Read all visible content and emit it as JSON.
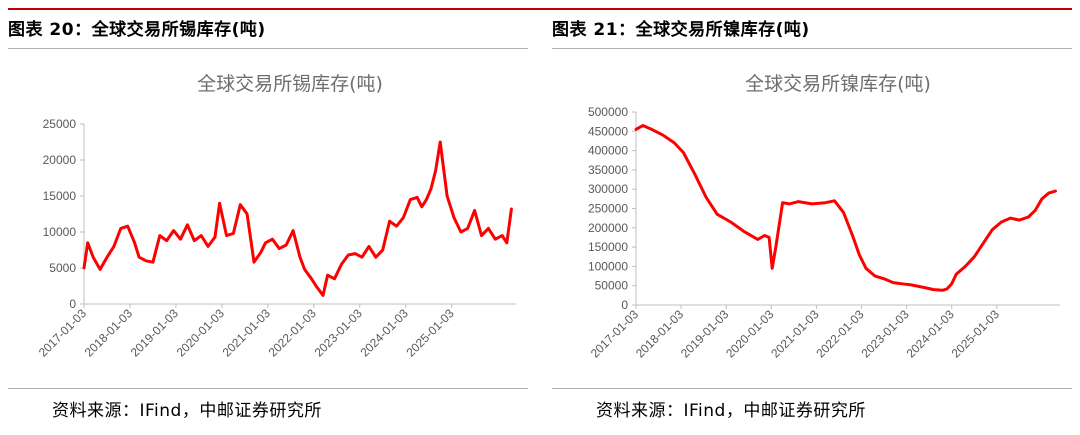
{
  "figures": [
    {
      "caption": "图表 20：全球交易所锡库存(吨)",
      "source": "资料来源：IFind，中邮证券研究所"
    },
    {
      "caption": "图表 21：全球交易所镍库存(吨)",
      "source": "资料来源：IFind，中邮证券研究所"
    }
  ],
  "chart_data": [
    {
      "type": "line",
      "title": "全球交易所锡库存(吨)",
      "xlabel": "",
      "ylabel": "",
      "ylim": [
        0,
        25000
      ],
      "yticks": [
        "0",
        "5000",
        "10000",
        "15000",
        "20000",
        "25000"
      ],
      "xticks": [
        "2017-01-03",
        "2018-01-03",
        "2019-01-03",
        "2020-01-03",
        "2021-01-03",
        "2022-01-03",
        "2023-01-03",
        "2024-01-03",
        "2025-01-03"
      ],
      "grid": false,
      "series_color": "#ff0000",
      "x": [
        2017.0,
        2017.08,
        2017.2,
        2017.35,
        2017.5,
        2017.65,
        2017.8,
        2017.95,
        2018.1,
        2018.2,
        2018.35,
        2018.5,
        2018.65,
        2018.8,
        2018.95,
        2019.1,
        2019.25,
        2019.4,
        2019.55,
        2019.7,
        2019.85,
        2019.95,
        2020.1,
        2020.25,
        2020.4,
        2020.55,
        2020.7,
        2020.85,
        2020.95,
        2021.1,
        2021.25,
        2021.4,
        2021.55,
        2021.7,
        2021.8,
        2021.95,
        2022.05,
        2022.2,
        2022.3,
        2022.45,
        2022.6,
        2022.75,
        2022.9,
        2023.05,
        2023.2,
        2023.35,
        2023.5,
        2023.65,
        2023.8,
        2023.95,
        2024.1,
        2024.25,
        2024.35,
        2024.45,
        2024.55,
        2024.65,
        2024.75,
        2024.9,
        2025.05,
        2025.2,
        2025.35,
        2025.5,
        2025.65,
        2025.8,
        2025.95,
        2026.1,
        2026.2,
        2026.3
      ],
      "y": [
        5000,
        8500,
        6500,
        4800,
        6500,
        8000,
        10500,
        10800,
        8500,
        6500,
        6000,
        5800,
        9500,
        8800,
        10200,
        9000,
        11000,
        8800,
        9500,
        8000,
        9300,
        14000,
        9500,
        9800,
        13800,
        12500,
        5800,
        7200,
        8500,
        9000,
        7700,
        8200,
        10200,
        6500,
        4800,
        3500,
        2500,
        1200,
        4000,
        3500,
        5500,
        6800,
        7000,
        6500,
        8000,
        6500,
        7500,
        11500,
        10800,
        12000,
        14500,
        14800,
        13500,
        14500,
        16000,
        18500,
        22500,
        15000,
        12000,
        10000,
        10500,
        13000,
        9500,
        10500,
        9000,
        9500,
        8500,
        13200
      ]
    },
    {
      "type": "line",
      "title": "全球交易所镍库存(吨)",
      "xlabel": "",
      "ylabel": "",
      "ylim": [
        0,
        500000
      ],
      "yticks": [
        "0",
        "50000",
        "100000",
        "150000",
        "200000",
        "250000",
        "300000",
        "350000",
        "400000",
        "450000",
        "500000"
      ],
      "xticks": [
        "2017-01-03",
        "2018-01-03",
        "2019-01-03",
        "2020-01-03",
        "2021-01-03",
        "2022-01-03",
        "2023-01-03",
        "2024-01-03",
        "2025-01-03"
      ],
      "grid": false,
      "series_color": "#ff0000",
      "x": [
        2017.0,
        2017.15,
        2017.35,
        2017.6,
        2017.85,
        2018.05,
        2018.3,
        2018.55,
        2018.8,
        2019.1,
        2019.4,
        2019.7,
        2019.85,
        2019.95,
        2020.02,
        2020.1,
        2020.25,
        2020.4,
        2020.6,
        2020.9,
        2021.2,
        2021.4,
        2021.6,
        2021.8,
        2021.95,
        2022.1,
        2022.3,
        2022.5,
        2022.7,
        2022.9,
        2023.1,
        2023.4,
        2023.6,
        2023.8,
        2023.9,
        2024.0,
        2024.1,
        2024.3,
        2024.5,
        2024.7,
        2024.9,
        2025.1,
        2025.3,
        2025.5,
        2025.7,
        2025.85,
        2026.0,
        2026.15,
        2026.3
      ],
      "y": [
        455000,
        465000,
        455000,
        440000,
        420000,
        395000,
        340000,
        280000,
        235000,
        215000,
        190000,
        170000,
        180000,
        175000,
        95000,
        150000,
        265000,
        262000,
        268000,
        262000,
        265000,
        270000,
        240000,
        180000,
        130000,
        95000,
        75000,
        68000,
        58000,
        55000,
        52000,
        45000,
        40000,
        38000,
        42000,
        55000,
        80000,
        100000,
        125000,
        160000,
        195000,
        215000,
        225000,
        220000,
        228000,
        245000,
        275000,
        290000,
        295000
      ]
    }
  ]
}
